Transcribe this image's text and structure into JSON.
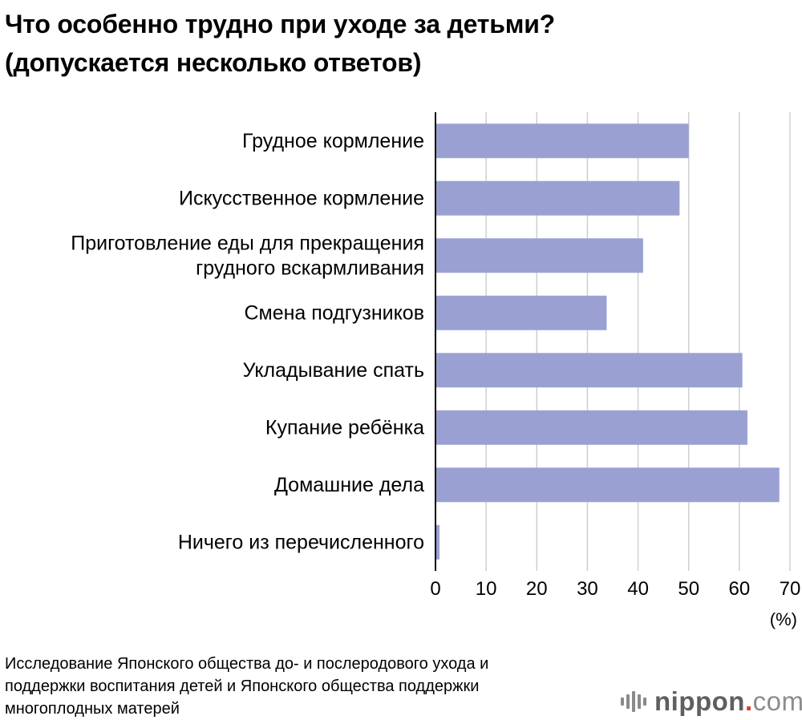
{
  "title_lines": [
    "Что особенно трудно при уходе за детьми?",
    "(допускается несколько ответов)"
  ],
  "chart_data": {
    "type": "bar",
    "orientation": "horizontal",
    "categories": [
      [
        "Грудное кормление"
      ],
      [
        "Искусственное кормление"
      ],
      [
        "Приготовление еды для прекращения",
        "грудного вскармливания"
      ],
      [
        "Смена подгузников"
      ],
      [
        "Укладывание спать"
      ],
      [
        "Купание ребёнка"
      ],
      [
        "Домашние дела"
      ],
      [
        "Ничего из перечисленного"
      ]
    ],
    "values": [
      50.0,
      48.2,
      41.0,
      33.8,
      60.6,
      61.6,
      67.9,
      0.8
    ],
    "xlim": [
      0,
      70
    ],
    "xticks": [
      "0",
      "10",
      "20",
      "30",
      "40",
      "50",
      "60",
      "70"
    ],
    "unit_label": "(%)",
    "bar_color": "#9aa1d2",
    "grid": "vertical",
    "gridline_color": "#cfcfcf",
    "axis_color": "#000000"
  },
  "source_lines": [
    "Исследование Японского общества до- и послеродового ухода и",
    "поддержки воспитания детей и Японского общества поддержки",
    "многоплодных матерей"
  ],
  "logo": {
    "brand_a": "nippon",
    "dot": ".",
    "brand_b": "com"
  }
}
